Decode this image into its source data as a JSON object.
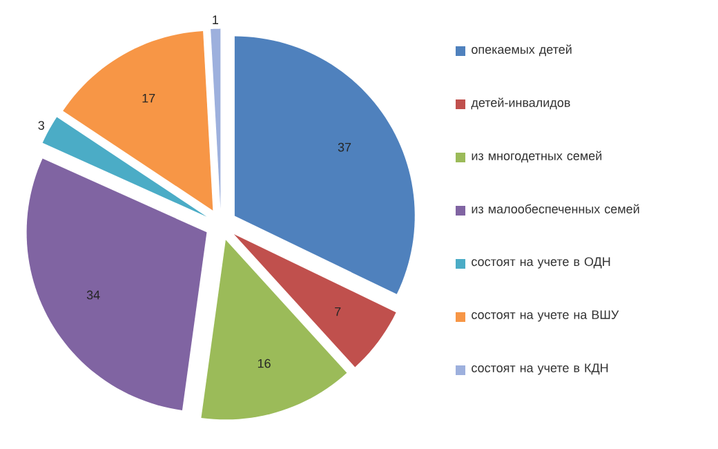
{
  "chart_data": {
    "type": "pie",
    "categories": [
      "опекаемых детей",
      "детей-инвалидов",
      "из многодетных семей",
      "из малообеспеченных семей",
      "состоят на учете в ОДН",
      "состоят на учете на ВШУ",
      "состоят на учете в КДН"
    ],
    "values": [
      37,
      7,
      16,
      34,
      3,
      17,
      1
    ],
    "colors": [
      "#4f81bd",
      "#c0504d",
      "#9bbb59",
      "#8064a2",
      "#4bacc6",
      "#f79646",
      "#9db0dd"
    ],
    "data_labels": true,
    "legend": "right"
  }
}
